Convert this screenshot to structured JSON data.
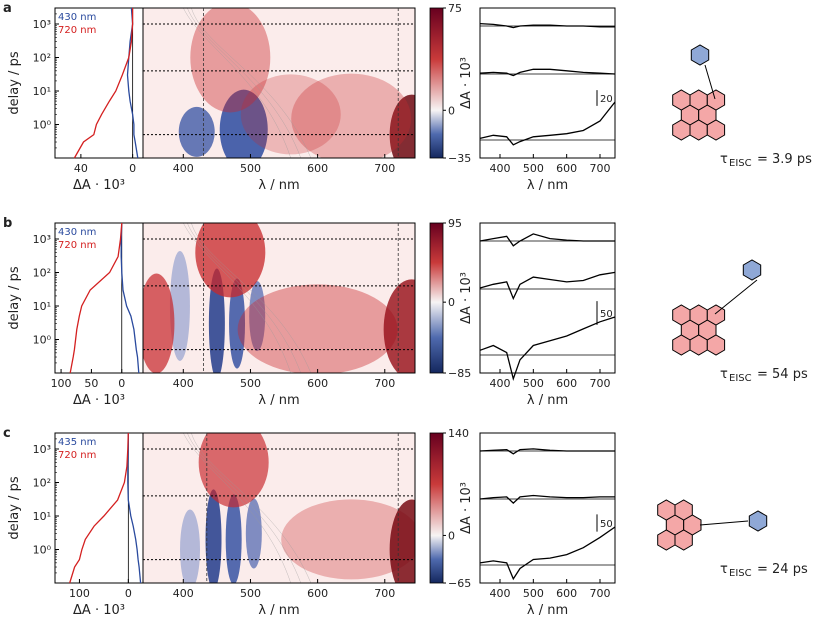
{
  "chart_data": [
    {
      "type": "heatmap",
      "panel_label": "a",
      "xlabel": "λ / nm",
      "ylabel": "delay / ps",
      "colorbar_label": "ΔA · 10³",
      "kinetics_xlabel": "ΔA · 10³",
      "spectra_xlabel": "λ / nm",
      "wavelength_range": [
        340,
        745
      ],
      "delay_range_ps": [
        0.1,
        3000
      ],
      "y_scale": "log",
      "x_ticks": [
        "400",
        "500",
        "600",
        "700"
      ],
      "y_ticks": [
        "10⁰",
        "10¹",
        "10²",
        "10³"
      ],
      "spectra_x_ticks": [
        "400",
        "500",
        "600",
        "700"
      ],
      "colorbar_range": [
        -35,
        75
      ],
      "colorbar_ticks": [
        "75",
        "0",
        "−35"
      ],
      "kinetics_ticks": [
        "40",
        "0"
      ],
      "kinetics_range": [
        60,
        -8
      ],
      "kinetic_traces": [
        {
          "name": "430 nm",
          "color": "#2a4a9e",
          "delay_ps": [
            0.1,
            0.3,
            0.5,
            1,
            2,
            5,
            10,
            30,
            100,
            300,
            1000,
            3000
          ],
          "dA": [
            -4,
            -2,
            -1,
            -1,
            0,
            2,
            3,
            4,
            3,
            2,
            0,
            1
          ]
        },
        {
          "name": "720 nm",
          "color": "#d42020",
          "delay_ps": [
            0.1,
            0.3,
            0.5,
            1,
            2,
            5,
            10,
            30,
            100,
            300,
            1000,
            3000
          ],
          "dA": [
            45,
            38,
            30,
            28,
            24,
            18,
            13,
            8,
            3,
            1,
            0,
            0
          ]
        }
      ],
      "slice_delays_ps": [
        0.5,
        40,
        1000
      ],
      "spectra_scale_bar": "20",
      "spectra": [
        {
          "delay_ps": 1000,
          "wavelength": [
            340,
            380,
            420,
            440,
            460,
            500,
            550,
            600,
            650,
            700,
            745
          ],
          "dA": [
            3,
            2,
            0,
            -2,
            0,
            1,
            1,
            0,
            0,
            -1,
            -1
          ]
        },
        {
          "delay_ps": 40,
          "wavelength": [
            340,
            380,
            420,
            440,
            460,
            500,
            550,
            600,
            650,
            700,
            745
          ],
          "dA": [
            1,
            2,
            1,
            -2,
            2,
            6,
            6,
            4,
            2,
            1,
            0
          ]
        },
        {
          "delay_ps": 0.5,
          "wavelength": [
            340,
            380,
            420,
            440,
            460,
            500,
            550,
            600,
            650,
            700,
            745
          ],
          "dA": [
            2,
            6,
            4,
            -6,
            -2,
            4,
            6,
            8,
            12,
            24,
            48
          ]
        }
      ],
      "tau_label": "τ",
      "tau_subscript": "EISC",
      "tau_value": "= 3.9 ps",
      "radical_label": "N-O•"
    },
    {
      "type": "heatmap",
      "panel_label": "b",
      "xlabel": "λ / nm",
      "ylabel": "delay / ps",
      "colorbar_label": "ΔA · 10³",
      "kinetics_xlabel": "ΔA · 10³",
      "spectra_xlabel": "λ / nm",
      "wavelength_range": [
        340,
        745
      ],
      "delay_range_ps": [
        0.1,
        3000
      ],
      "y_scale": "log",
      "x_ticks": [
        "400",
        "500",
        "600",
        "700"
      ],
      "y_ticks": [
        "10⁰",
        "10¹",
        "10²",
        "10³"
      ],
      "spectra_x_ticks": [
        "400",
        "500",
        "600",
        "700"
      ],
      "colorbar_range": [
        -85,
        95
      ],
      "colorbar_ticks": [
        "95",
        "0",
        "−85"
      ],
      "kinetics_ticks": [
        "100",
        "50",
        "0"
      ],
      "kinetics_range": [
        110,
        -35
      ],
      "kinetic_traces": [
        {
          "name": "430 nm",
          "color": "#2a4a9e",
          "delay_ps": [
            0.1,
            0.3,
            0.5,
            1,
            2,
            5,
            10,
            30,
            100,
            300,
            1000,
            3000
          ],
          "dA": [
            -28,
            -26,
            -24,
            -22,
            -20,
            -15,
            -8,
            -2,
            0,
            1,
            1,
            0
          ]
        },
        {
          "name": "720 nm",
          "color": "#d42020",
          "delay_ps": [
            0.1,
            0.3,
            0.5,
            1,
            2,
            5,
            10,
            30,
            100,
            300,
            1000,
            3000
          ],
          "dA": [
            85,
            80,
            78,
            76,
            74,
            70,
            66,
            52,
            20,
            6,
            2,
            0
          ]
        }
      ],
      "slice_delays_ps": [
        0.5,
        40,
        1000
      ],
      "spectra_scale_bar": "50",
      "spectra": [
        {
          "delay_ps": 1000,
          "wavelength": [
            340,
            380,
            420,
            440,
            460,
            500,
            550,
            600,
            650,
            700,
            745
          ],
          "dA": [
            0,
            5,
            10,
            -10,
            0,
            15,
            5,
            2,
            0,
            0,
            0
          ]
        },
        {
          "delay_ps": 40,
          "wavelength": [
            340,
            380,
            420,
            440,
            460,
            500,
            550,
            600,
            650,
            700,
            745
          ],
          "dA": [
            2,
            10,
            15,
            -20,
            10,
            25,
            20,
            15,
            18,
            30,
            35
          ]
        },
        {
          "delay_ps": 0.5,
          "wavelength": [
            340,
            380,
            420,
            440,
            460,
            500,
            550,
            600,
            650,
            700,
            745
          ],
          "dA": [
            10,
            20,
            5,
            -50,
            -10,
            20,
            30,
            40,
            55,
            70,
            80
          ]
        }
      ],
      "tau_label": "τ",
      "tau_subscript": "EISC",
      "tau_value": "= 54 ps",
      "radical_label": "N-O•"
    },
    {
      "type": "heatmap",
      "panel_label": "c",
      "xlabel": "λ / nm",
      "ylabel": "delay / ps",
      "colorbar_label": "ΔA · 10³",
      "kinetics_xlabel": "ΔA · 10³",
      "spectra_xlabel": "λ / nm",
      "wavelength_range": [
        340,
        745
      ],
      "delay_range_ps": [
        0.1,
        3000
      ],
      "y_scale": "log",
      "x_ticks": [
        "400",
        "500",
        "600",
        "700"
      ],
      "y_ticks": [
        "10⁰",
        "10¹",
        "10²",
        "10³"
      ],
      "spectra_x_ticks": [
        "400",
        "500",
        "600",
        "700"
      ],
      "colorbar_range": [
        -65,
        140
      ],
      "colorbar_ticks": [
        "140",
        "0",
        "−65"
      ],
      "kinetics_ticks": [
        "100",
        "0"
      ],
      "kinetics_range": [
        150,
        -30
      ],
      "kinetic_traces": [
        {
          "name": "435 nm",
          "color": "#2a4a9e",
          "delay_ps": [
            0.1,
            0.3,
            0.5,
            1,
            2,
            5,
            10,
            30,
            100,
            300,
            1000,
            3000
          ],
          "dA": [
            -25,
            -22,
            -20,
            -18,
            -15,
            -10,
            -5,
            0,
            1,
            1,
            0,
            0
          ]
        },
        {
          "name": "720 nm",
          "color": "#d42020",
          "delay_ps": [
            0.1,
            0.3,
            0.5,
            1,
            2,
            5,
            10,
            30,
            100,
            300,
            1000,
            3000
          ],
          "dA": [
            120,
            110,
            100,
            95,
            88,
            70,
            50,
            22,
            8,
            3,
            1,
            0
          ]
        }
      ],
      "slice_delays_ps": [
        0.5,
        40,
        1000
      ],
      "spectra_scale_bar": "50",
      "spectra": [
        {
          "delay_ps": 1000,
          "wavelength": [
            340,
            380,
            420,
            440,
            460,
            500,
            550,
            600,
            650,
            700,
            745
          ],
          "dA": [
            0,
            2,
            4,
            -8,
            4,
            6,
            2,
            0,
            0,
            0,
            0
          ]
        },
        {
          "delay_ps": 40,
          "wavelength": [
            340,
            380,
            420,
            440,
            460,
            500,
            550,
            600,
            650,
            700,
            745
          ],
          "dA": [
            0,
            4,
            6,
            -12,
            6,
            10,
            6,
            4,
            4,
            6,
            6
          ]
        },
        {
          "delay_ps": 0.5,
          "wavelength": [
            340,
            380,
            420,
            440,
            460,
            500,
            550,
            600,
            650,
            700,
            745
          ],
          "dA": [
            6,
            12,
            6,
            -40,
            -10,
            16,
            20,
            30,
            50,
            80,
            110
          ]
        }
      ],
      "tau_label": "τ",
      "tau_subscript": "EISC",
      "tau_value": "= 24 ps",
      "radical_label": "N-O•"
    }
  ],
  "colors": {
    "positive": "#b2182b",
    "negative": "#2c4a96",
    "perylene_fill": "#f4a7a7",
    "nitroxide_fill": "#8fa8d6"
  }
}
